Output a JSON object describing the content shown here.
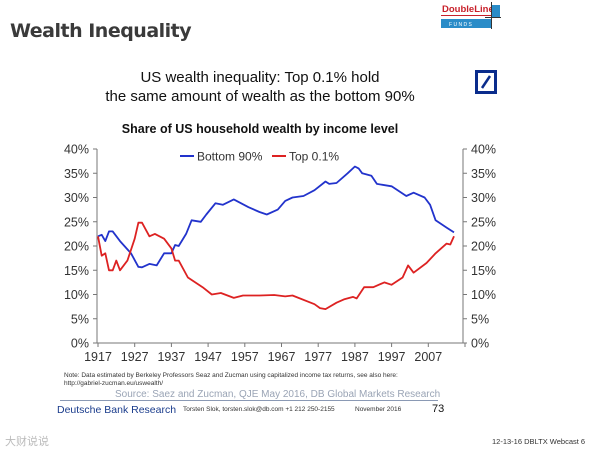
{
  "slide": {
    "title": "Wealth Inequality",
    "logo_text": "DoubleLine",
    "logo_sub": "F U N D S",
    "headline_line1": "US wealth inequality: Top 0.1% hold",
    "headline_line2": "the same amount of wealth as the bottom 90%",
    "note_line1": "Note: Data estimated by Berkeley Professors Seaz and Zucman using capitalized income tax returns, see also here:",
    "note_line2": "http://gabriel-zucman.eu/uswealth/",
    "source": "Source: Saez and Zucman, QJE May 2016, DB Global Markets Research",
    "db_research": "Deutsche Bank Research",
    "contact": "Torsten Slok, torsten.slok@db.com  +1 212 250-2155",
    "date": "November 2016",
    "page_number": "73",
    "watermark": "大财说说",
    "footer": "12-13-16 DBLTX Webcast 6"
  },
  "chart_data": {
    "type": "line",
    "title": "Share of US household wealth by income level",
    "xlabel": "",
    "ylabel": "",
    "xlim": [
      1917,
      2017
    ],
    "ylim": [
      0,
      40
    ],
    "x_ticks": [
      1917,
      1927,
      1937,
      1947,
      1957,
      1967,
      1977,
      1987,
      1997,
      2007
    ],
    "y_ticks": [
      "0%",
      "5%",
      "10%",
      "15%",
      "20%",
      "25%",
      "30%",
      "35%",
      "40%"
    ],
    "y_tick_values": [
      0,
      5,
      10,
      15,
      20,
      25,
      30,
      35,
      40
    ],
    "legend_placement": "top-center",
    "grid": false,
    "series": [
      {
        "name": "Bottom 90%",
        "color": "#2233cc",
        "x": [
          1917,
          1918,
          1919,
          1920,
          1921,
          1923,
          1926,
          1928,
          1929,
          1931,
          1933,
          1935,
          1937,
          1938,
          1939,
          1941,
          1942.5,
          1945,
          1946.5,
          1949,
          1951,
          1954,
          1958,
          1961,
          1963,
          1966,
          1968,
          1970,
          1973,
          1976,
          1979,
          1980,
          1982,
          1985,
          1987,
          1988,
          1989,
          1991.5,
          1993,
          1997,
          2001,
          2003,
          2006,
          2007.5,
          2009,
          2012,
          2014
        ],
        "y": [
          22,
          22.3,
          21,
          23,
          23,
          21,
          18.5,
          15.7,
          15.6,
          16.3,
          16,
          18.5,
          18.5,
          20.2,
          20,
          22.5,
          25.3,
          25,
          26.5,
          28.8,
          28.5,
          29.6,
          28,
          27,
          26.5,
          27.5,
          29.3,
          30,
          30.3,
          31.5,
          33.3,
          32.8,
          33,
          35,
          36.4,
          36,
          35,
          34.5,
          32.8,
          32.3,
          30.3,
          31,
          30,
          28.5,
          25.3,
          23.8,
          22.8
        ]
      },
      {
        "name": "Top 0.1%",
        "color": "#dd2222",
        "x": [
          1917,
          1918,
          1919,
          1920,
          1921,
          1922,
          1923,
          1925,
          1927,
          1928,
          1929,
          1931,
          1932.5,
          1935,
          1937,
          1938,
          1939,
          1941.5,
          1945.5,
          1948,
          1950.5,
          1954,
          1956.5,
          1961,
          1965,
          1968,
          1970,
          1976,
          1977.5,
          1979,
          1982,
          1984,
          1986.5,
          1987.5,
          1989.5,
          1992,
          1995,
          1997,
          2000,
          2001.5,
          2003,
          2006.5,
          2009,
          2012,
          2013,
          2014
        ],
        "y": [
          22,
          18,
          18.5,
          15,
          15,
          17,
          15,
          17,
          21.5,
          24.8,
          24.8,
          22,
          22.5,
          21.5,
          19.5,
          17,
          17,
          13.5,
          11.5,
          10,
          10.3,
          9.3,
          9.8,
          9.8,
          9.9,
          9.6,
          9.8,
          8,
          7.2,
          7,
          8.3,
          9,
          9.5,
          9.2,
          11.5,
          11.5,
          12.5,
          12,
          13.5,
          16,
          14.5,
          16.5,
          18.5,
          20.5,
          20.3,
          22
        ]
      }
    ]
  }
}
